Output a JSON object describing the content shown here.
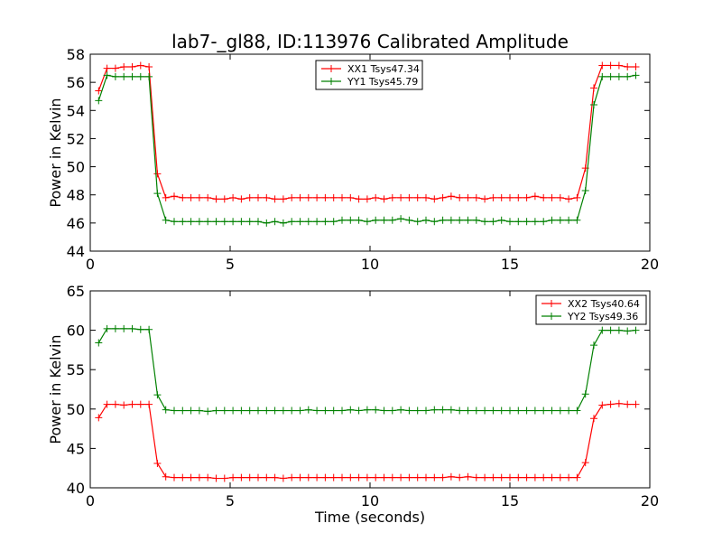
{
  "title": "lab7-_gl88, ID:113976 Calibrated Amplitude",
  "chart_data": [
    {
      "type": "line",
      "ylabel": "Power in Kelvin",
      "xlabel": "",
      "xlim": [
        0,
        20
      ],
      "ylim": [
        44,
        58
      ],
      "xticks": [
        0,
        5,
        10,
        15,
        20
      ],
      "yticks": [
        44,
        46,
        48,
        50,
        52,
        54,
        56,
        58
      ],
      "legend_position": "top-center",
      "x": [
        0.3,
        0.6,
        0.9,
        1.2,
        1.5,
        1.8,
        2.1,
        2.4,
        2.7,
        3.0,
        3.3,
        3.6,
        3.9,
        4.2,
        4.5,
        4.8,
        5.1,
        5.4,
        5.7,
        6.0,
        6.3,
        6.6,
        6.9,
        7.2,
        7.5,
        7.8,
        8.1,
        8.4,
        8.7,
        9.0,
        9.3,
        9.6,
        9.9,
        10.2,
        10.5,
        10.8,
        11.1,
        11.4,
        11.7,
        12.0,
        12.3,
        12.6,
        12.9,
        13.2,
        13.5,
        13.8,
        14.1,
        14.4,
        14.7,
        15.0,
        15.3,
        15.6,
        15.9,
        16.2,
        16.5,
        16.8,
        17.1,
        17.4,
        17.7,
        18.0,
        18.3,
        18.6,
        18.9,
        19.2,
        19.5
      ],
      "series": [
        {
          "name": "XX1 Tsys47.34",
          "color": "#ff0000",
          "values": [
            55.4,
            57.0,
            57.0,
            57.1,
            57.1,
            57.2,
            57.1,
            49.5,
            47.8,
            47.9,
            47.8,
            47.8,
            47.8,
            47.8,
            47.7,
            47.7,
            47.8,
            47.7,
            47.8,
            47.8,
            47.8,
            47.7,
            47.7,
            47.8,
            47.8,
            47.8,
            47.8,
            47.8,
            47.8,
            47.8,
            47.8,
            47.7,
            47.7,
            47.8,
            47.7,
            47.8,
            47.8,
            47.8,
            47.8,
            47.8,
            47.7,
            47.8,
            47.9,
            47.8,
            47.8,
            47.8,
            47.7,
            47.8,
            47.8,
            47.8,
            47.8,
            47.8,
            47.9,
            47.8,
            47.8,
            47.8,
            47.7,
            47.8,
            49.9,
            55.6,
            57.2,
            57.2,
            57.2,
            57.1,
            57.1
          ]
        },
        {
          "name": "YY1 Tsys45.79",
          "color": "#008000",
          "values": [
            54.7,
            56.5,
            56.4,
            56.4,
            56.4,
            56.4,
            56.4,
            48.1,
            46.2,
            46.1,
            46.1,
            46.1,
            46.1,
            46.1,
            46.1,
            46.1,
            46.1,
            46.1,
            46.1,
            46.1,
            46.0,
            46.1,
            46.0,
            46.1,
            46.1,
            46.1,
            46.1,
            46.1,
            46.1,
            46.2,
            46.2,
            46.2,
            46.1,
            46.2,
            46.2,
            46.2,
            46.3,
            46.2,
            46.1,
            46.2,
            46.1,
            46.2,
            46.2,
            46.2,
            46.2,
            46.2,
            46.1,
            46.1,
            46.2,
            46.1,
            46.1,
            46.1,
            46.1,
            46.1,
            46.2,
            46.2,
            46.2,
            46.2,
            48.3,
            54.4,
            56.4,
            56.4,
            56.4,
            56.4,
            56.5
          ]
        }
      ]
    },
    {
      "type": "line",
      "ylabel": "Power in Kelvin",
      "xlabel": "Time (seconds)",
      "xlim": [
        0,
        20
      ],
      "ylim": [
        40,
        65
      ],
      "xticks": [
        0,
        5,
        10,
        15,
        20
      ],
      "yticks": [
        40,
        45,
        50,
        55,
        60,
        65
      ],
      "legend_position": "top-right",
      "x": [
        0.3,
        0.6,
        0.9,
        1.2,
        1.5,
        1.8,
        2.1,
        2.4,
        2.7,
        3.0,
        3.3,
        3.6,
        3.9,
        4.2,
        4.5,
        4.8,
        5.1,
        5.4,
        5.7,
        6.0,
        6.3,
        6.6,
        6.9,
        7.2,
        7.5,
        7.8,
        8.1,
        8.4,
        8.7,
        9.0,
        9.3,
        9.6,
        9.9,
        10.2,
        10.5,
        10.8,
        11.1,
        11.4,
        11.7,
        12.0,
        12.3,
        12.6,
        12.9,
        13.2,
        13.5,
        13.8,
        14.1,
        14.4,
        14.7,
        15.0,
        15.3,
        15.6,
        15.9,
        16.2,
        16.5,
        16.8,
        17.1,
        17.4,
        17.7,
        18.0,
        18.3,
        18.6,
        18.9,
        19.2,
        19.5
      ],
      "series": [
        {
          "name": "XX2 Tsys40.64",
          "color": "#ff0000",
          "values": [
            48.9,
            50.6,
            50.6,
            50.5,
            50.6,
            50.6,
            50.6,
            43.1,
            41.4,
            41.3,
            41.3,
            41.3,
            41.3,
            41.3,
            41.2,
            41.2,
            41.3,
            41.3,
            41.3,
            41.3,
            41.3,
            41.3,
            41.2,
            41.3,
            41.3,
            41.3,
            41.3,
            41.3,
            41.3,
            41.3,
            41.3,
            41.3,
            41.3,
            41.3,
            41.3,
            41.3,
            41.3,
            41.3,
            41.3,
            41.3,
            41.3,
            41.3,
            41.4,
            41.3,
            41.4,
            41.3,
            41.3,
            41.3,
            41.3,
            41.3,
            41.3,
            41.3,
            41.3,
            41.3,
            41.3,
            41.3,
            41.3,
            41.3,
            43.2,
            48.8,
            50.5,
            50.6,
            50.7,
            50.6,
            50.6
          ]
        },
        {
          "name": "YY2 Tsys49.36",
          "color": "#008000",
          "values": [
            58.4,
            60.2,
            60.2,
            60.2,
            60.2,
            60.1,
            60.1,
            51.8,
            49.9,
            49.8,
            49.8,
            49.8,
            49.8,
            49.7,
            49.8,
            49.8,
            49.8,
            49.8,
            49.8,
            49.8,
            49.8,
            49.8,
            49.8,
            49.8,
            49.8,
            49.9,
            49.8,
            49.8,
            49.8,
            49.8,
            49.9,
            49.8,
            49.9,
            49.9,
            49.8,
            49.8,
            49.9,
            49.8,
            49.8,
            49.8,
            49.9,
            49.9,
            49.9,
            49.8,
            49.8,
            49.8,
            49.8,
            49.8,
            49.8,
            49.8,
            49.8,
            49.8,
            49.8,
            49.8,
            49.8,
            49.8,
            49.8,
            49.8,
            51.9,
            58.1,
            60.0,
            60.0,
            60.0,
            59.9,
            60.0
          ]
        }
      ]
    }
  ]
}
